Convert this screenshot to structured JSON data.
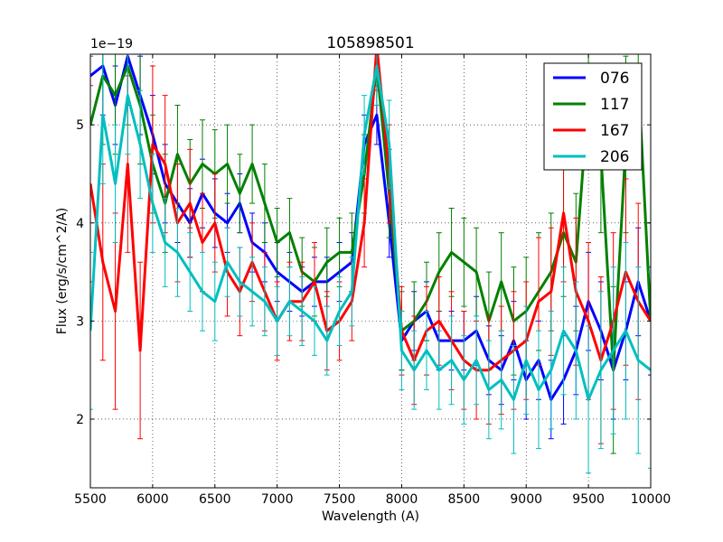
{
  "chart_data": {
    "type": "line",
    "title": "105898501",
    "xlabel": "Wavelength (A)",
    "ylabel": "Flux (erg/s/cm^2/A)",
    "offset_label": "1e−19",
    "xlim": [
      5500,
      10000
    ],
    "ylim": [
      1.3,
      5.72
    ],
    "xticks": [
      5500,
      6000,
      6500,
      7000,
      7500,
      8000,
      8500,
      9000,
      9500,
      10000
    ],
    "yticks": [
      2,
      3,
      4,
      5
    ],
    "grid": true,
    "legend_position": "top-right",
    "x": [
      5500,
      5600,
      5700,
      5800,
      5900,
      6000,
      6100,
      6200,
      6300,
      6400,
      6500,
      6600,
      6700,
      6800,
      6900,
      7000,
      7100,
      7200,
      7300,
      7400,
      7500,
      7600,
      7700,
      7800,
      7900,
      8000,
      8100,
      8200,
      8300,
      8400,
      8500,
      8600,
      8700,
      8800,
      8900,
      9000,
      9100,
      9200,
      9300,
      9400,
      9500,
      9600,
      9700,
      9800,
      9900,
      10000
    ],
    "series": [
      {
        "name": "076",
        "color": "#0000ff",
        "values": [
          5.5,
          5.6,
          5.2,
          5.7,
          5.3,
          4.9,
          4.4,
          4.2,
          4.0,
          4.3,
          4.1,
          4.0,
          4.2,
          3.8,
          3.7,
          3.5,
          3.4,
          3.3,
          3.4,
          3.4,
          3.5,
          3.6,
          4.8,
          5.1,
          4.0,
          2.8,
          3.0,
          3.1,
          2.8,
          2.8,
          2.8,
          2.9,
          2.6,
          2.5,
          2.8,
          2.4,
          2.6,
          2.2,
          2.4,
          2.7,
          3.2,
          2.9,
          2.5,
          2.9,
          3.4,
          3.0
        ],
        "errors": [
          0.5,
          0.5,
          0.4,
          0.5,
          0.4,
          0.4,
          0.4,
          0.4,
          0.35,
          0.35,
          0.35,
          0.3,
          0.3,
          0.3,
          0.3,
          0.3,
          0.3,
          0.25,
          0.25,
          0.25,
          0.3,
          0.3,
          0.3,
          0.3,
          0.35,
          0.3,
          0.3,
          0.3,
          0.3,
          0.3,
          0.3,
          0.35,
          0.35,
          0.35,
          0.4,
          0.4,
          0.4,
          0.4,
          0.45,
          0.45,
          0.5,
          0.5,
          0.5,
          0.5,
          0.55,
          0.55
        ]
      },
      {
        "name": "117",
        "color": "#008000",
        "values": [
          5.0,
          5.5,
          5.3,
          5.6,
          5.2,
          4.6,
          4.2,
          4.7,
          4.4,
          4.6,
          4.5,
          4.6,
          4.3,
          4.6,
          4.2,
          3.8,
          3.9,
          3.5,
          3.4,
          3.6,
          3.7,
          3.7,
          4.5,
          5.6,
          4.3,
          2.9,
          3.0,
          3.2,
          3.5,
          3.7,
          3.6,
          3.5,
          3.0,
          3.4,
          3.0,
          3.1,
          3.3,
          3.5,
          3.9,
          3.6,
          5.3,
          4.7,
          2.5,
          4.8,
          5.5,
          3.0
        ],
        "errors": [
          0.7,
          0.7,
          0.6,
          0.6,
          0.6,
          0.5,
          0.5,
          0.5,
          0.45,
          0.45,
          0.45,
          0.4,
          0.4,
          0.4,
          0.4,
          0.35,
          0.35,
          0.35,
          0.35,
          0.35,
          0.35,
          0.4,
          0.4,
          0.4,
          0.45,
          0.4,
          0.4,
          0.4,
          0.4,
          0.45,
          0.45,
          0.45,
          0.5,
          0.5,
          0.55,
          0.55,
          0.6,
          0.6,
          0.65,
          0.7,
          0.75,
          0.8,
          0.85,
          0.9,
          0.95,
          1.0
        ]
      },
      {
        "name": "167",
        "color": "#ff0000",
        "values": [
          4.4,
          3.6,
          3.1,
          4.6,
          2.7,
          4.8,
          4.6,
          4.0,
          4.2,
          3.8,
          4.0,
          3.5,
          3.3,
          3.6,
          3.3,
          3.0,
          3.2,
          3.2,
          3.4,
          2.9,
          3.0,
          3.2,
          4.0,
          5.8,
          4.5,
          2.9,
          2.6,
          2.9,
          3.0,
          2.8,
          2.6,
          2.5,
          2.5,
          2.6,
          2.7,
          2.8,
          3.2,
          3.3,
          4.1,
          3.3,
          3.0,
          2.6,
          3.0,
          3.5,
          3.2,
          3.0
        ],
        "errors": [
          1.0,
          1.0,
          1.0,
          0.9,
          0.9,
          0.8,
          0.7,
          0.6,
          0.55,
          0.5,
          0.5,
          0.45,
          0.45,
          0.4,
          0.4,
          0.4,
          0.4,
          0.4,
          0.4,
          0.4,
          0.4,
          0.4,
          0.45,
          0.45,
          0.5,
          0.45,
          0.45,
          0.45,
          0.45,
          0.5,
          0.5,
          0.5,
          0.55,
          0.55,
          0.6,
          0.6,
          0.65,
          0.65,
          0.7,
          0.75,
          0.8,
          0.85,
          0.9,
          0.95,
          1.0,
          1.0
        ]
      },
      {
        "name": "206",
        "color": "#00bfbf",
        "values": [
          2.9,
          5.1,
          4.4,
          5.3,
          4.8,
          4.2,
          3.8,
          3.7,
          3.5,
          3.3,
          3.2,
          3.6,
          3.4,
          3.3,
          3.2,
          3.0,
          3.2,
          3.1,
          3.0,
          2.8,
          3.1,
          3.3,
          4.9,
          5.6,
          4.8,
          2.7,
          2.5,
          2.7,
          2.5,
          2.6,
          2.4,
          2.6,
          2.3,
          2.4,
          2.2,
          2.6,
          2.3,
          2.5,
          2.9,
          2.7,
          2.2,
          2.5,
          2.7,
          2.9,
          2.6,
          2.5
        ],
        "errors": [
          0.8,
          0.7,
          0.6,
          0.6,
          0.55,
          0.5,
          0.45,
          0.45,
          0.4,
          0.4,
          0.4,
          0.35,
          0.35,
          0.35,
          0.35,
          0.35,
          0.35,
          0.35,
          0.35,
          0.35,
          0.35,
          0.35,
          0.4,
          0.4,
          0.45,
          0.4,
          0.4,
          0.4,
          0.4,
          0.45,
          0.45,
          0.45,
          0.5,
          0.5,
          0.55,
          0.55,
          0.6,
          0.6,
          0.65,
          0.7,
          0.75,
          0.8,
          0.85,
          0.9,
          0.95,
          1.0
        ]
      }
    ]
  }
}
